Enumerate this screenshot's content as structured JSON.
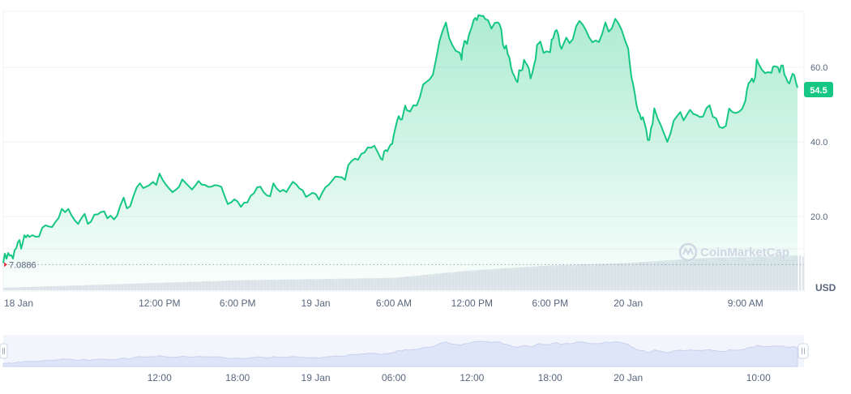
{
  "currency_label": "USD",
  "baseline_label": "7.0886",
  "current_value_label": "54.5",
  "watermark": "CoinMarketCap",
  "colors": {
    "line": "#16c784",
    "fill": "#16c784",
    "volume": "#e6e9ef",
    "navigator": "#dfe5f8",
    "badge": "#16c784",
    "baseline": "#9aa5b8",
    "baseline_marker": "#ea3943"
  },
  "nav_labels": [
    "12:00",
    "18:00",
    "19 Jan",
    "06:00",
    "12:00",
    "18:00",
    "20 Jan",
    "10:00"
  ],
  "chart_data": {
    "type": "area",
    "title": "",
    "xlabel": "",
    "ylabel": "USD",
    "ylim": [
      0,
      75
    ],
    "y_ticks": [
      "20.0",
      "40.0",
      "60.0"
    ],
    "x_tick_labels": [
      "18 Jan",
      "12:00 PM",
      "6:00 PM",
      "19 Jan",
      "6:00 AM",
      "12:00 PM",
      "6:00 PM",
      "20 Jan",
      "9:00 AM"
    ],
    "baseline": 7.0886,
    "last_value": 54.5,
    "grid": true,
    "series": [
      {
        "x_hours": [
          0,
          0.5,
          1,
          1.5,
          2,
          3,
          4,
          5,
          6,
          7,
          8,
          9,
          10,
          11,
          12,
          13,
          14,
          15,
          16,
          17,
          18,
          19,
          20,
          21,
          22,
          23,
          24,
          25,
          26,
          27,
          28,
          29,
          29.5,
          30,
          30.5,
          31,
          32,
          33,
          34,
          35,
          35.2,
          35.5,
          36,
          36.5,
          37,
          38,
          38.5,
          39,
          39.5,
          40,
          40.5,
          41,
          42,
          42.5,
          43,
          44,
          45,
          46,
          47,
          48,
          48.5,
          49,
          49.5,
          50,
          51,
          52,
          53,
          54,
          55,
          56,
          57,
          57.5,
          58,
          59,
          59.5,
          60,
          60.5,
          61
        ],
        "y_values": [
          7.5,
          9.5,
          11.5,
          13,
          14.5,
          17,
          18.5,
          22,
          19.5,
          20.5,
          19.5,
          23,
          25.5,
          28,
          31.5,
          26.5,
          29,
          29.5,
          28,
          25.5,
          24,
          25.5,
          26.5,
          27.5,
          28,
          27,
          26,
          28.5,
          30.5,
          35.5,
          38.5,
          35.5,
          37.5,
          42,
          46,
          48.5,
          52,
          58,
          72,
          64,
          62,
          67,
          71,
          74,
          73,
          72,
          65,
          60,
          56,
          62,
          57,
          66,
          64,
          70,
          66,
          71,
          68,
          69,
          73,
          65,
          53,
          46,
          40.5,
          49,
          40,
          48,
          47.5,
          49,
          44,
          48,
          51,
          57,
          61,
          58.5,
          60,
          58,
          57,
          54.5
        ]
      }
    ],
    "volume": {
      "x_hours": [
        0,
        6,
        12,
        18,
        24,
        30,
        36,
        42,
        48,
        54,
        61
      ],
      "values": [
        1,
        2,
        3,
        4,
        4.5,
        5,
        8,
        10,
        11,
        13,
        14
      ]
    }
  }
}
